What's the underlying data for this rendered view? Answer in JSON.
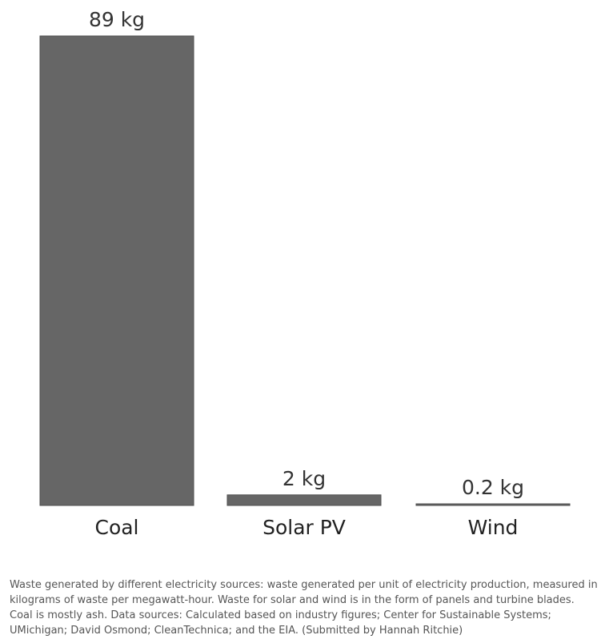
{
  "colors": {
    "bar_fill": "#666666",
    "bar_stroke": "#4d4d4d",
    "caption_text": "#555555"
  },
  "chart_data": {
    "type": "bar",
    "categories": [
      "Coal",
      "Solar PV",
      "Wind"
    ],
    "values": [
      89,
      2,
      0.2
    ],
    "value_labels": [
      "89 kg",
      "2 kg",
      "0.2 kg"
    ],
    "unit": "kg",
    "title": "",
    "xlabel": "",
    "ylabel": "",
    "ylim": [
      0,
      89
    ],
    "grid": false,
    "legend": "none"
  },
  "caption": "Waste generated by different electricity sources: waste generated per unit of electricity production, measured in kilograms of waste per megawatt-hour. Waste for solar and wind is in the form of panels and turbine blades. Coal is mostly ash. Data sources: Calculated based on industry figures; Center for Sustainable Systems; UMichigan; David Osmond; CleanTechnica; and the EIA. (Submitted by Hannah Ritchie)"
}
